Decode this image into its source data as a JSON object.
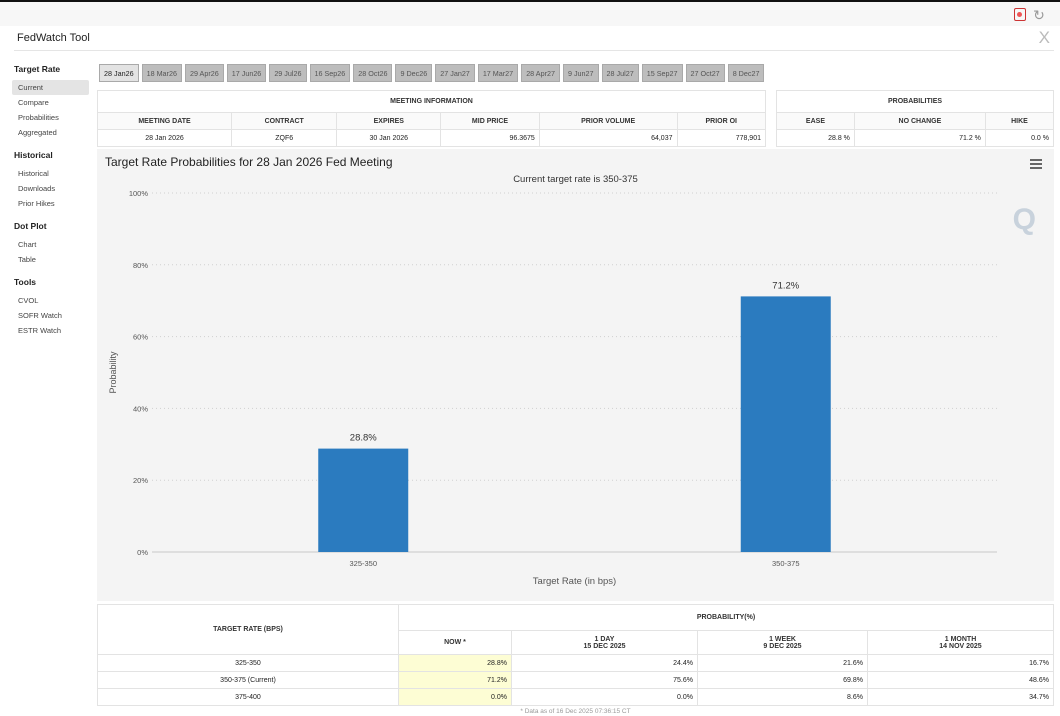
{
  "app": {
    "title": "FedWatch Tool",
    "close_glyph": "X"
  },
  "sidebar": {
    "sections": [
      {
        "heading": "Target Rate",
        "items": [
          "Current",
          "Compare",
          "Probabilities",
          "Aggregated"
        ]
      },
      {
        "heading": "Historical",
        "items": [
          "Historical",
          "Downloads",
          "Prior Hikes"
        ]
      },
      {
        "heading": "Dot Plot",
        "items": [
          "Chart",
          "Table"
        ]
      },
      {
        "heading": "Tools",
        "items": [
          "CVOL",
          "SOFR Watch",
          "ESTR Watch"
        ]
      }
    ]
  },
  "tabs": [
    "28 Jan26",
    "18 Mar26",
    "29 Apr26",
    "17 Jun26",
    "29 Jul26",
    "16 Sep26",
    "28 Oct26",
    "9 Dec26",
    "27 Jan27",
    "17 Mar27",
    "28 Apr27",
    "9 Jun27",
    "28 Jul27",
    "15 Sep27",
    "27 Oct27",
    "8 Dec27"
  ],
  "meeting_info": {
    "header": "MEETING INFORMATION",
    "columns": [
      "MEETING DATE",
      "CONTRACT",
      "EXPIRES",
      "MID PRICE",
      "PRIOR VOLUME",
      "PRIOR OI"
    ],
    "values": [
      "28 Jan 2026",
      "ZQF6",
      "30 Jan 2026",
      "96.3675",
      "64,037",
      "778,901"
    ]
  },
  "probabilities": {
    "header": "PROBABILITIES",
    "columns": [
      "EASE",
      "NO CHANGE",
      "HIKE"
    ],
    "values": [
      "28.8 %",
      "71.2 %",
      "0.0 %"
    ]
  },
  "chart_data": {
    "type": "bar",
    "title": "Target Rate Probabilities for 28 Jan 2026 Fed Meeting",
    "subtitle": "Current target rate is 350-375",
    "categories": [
      "325-350",
      "350-375"
    ],
    "values": [
      28.8,
      71.2
    ],
    "data_labels": [
      "28.8%",
      "71.2%"
    ],
    "xlabel": "Target Rate (in bps)",
    "ylabel": "Probability",
    "ylim": [
      0,
      100
    ],
    "yticks": [
      0,
      20,
      40,
      60,
      80,
      100
    ],
    "ytick_labels": [
      "0%",
      "20%",
      "40%",
      "60%",
      "80%",
      "100%"
    ],
    "bar_color": "#2b7bbf",
    "grid": true
  },
  "bottom_table": {
    "col_rate": "TARGET RATE (BPS)",
    "col_prob": "PROBABILITY(%)",
    "subcols": [
      {
        "line1": "NOW *",
        "line2": ""
      },
      {
        "line1": "1 DAY",
        "line2": "15 DEC 2025"
      },
      {
        "line1": "1 WEEK",
        "line2": "9 DEC 2025"
      },
      {
        "line1": "1 MONTH",
        "line2": "14 NOV 2025"
      }
    ],
    "rows": [
      {
        "rate": "325-350",
        "vals": [
          "28.8%",
          "24.4%",
          "21.6%",
          "16.7%"
        ]
      },
      {
        "rate": "350-375 (Current)",
        "vals": [
          "71.2%",
          "75.6%",
          "69.8%",
          "48.6%"
        ]
      },
      {
        "rate": "375-400",
        "vals": [
          "0.0%",
          "0.0%",
          "8.6%",
          "34.7%"
        ]
      }
    ],
    "footnote": "* Data as of 16 Dec 2025 07:36:15 CT"
  }
}
